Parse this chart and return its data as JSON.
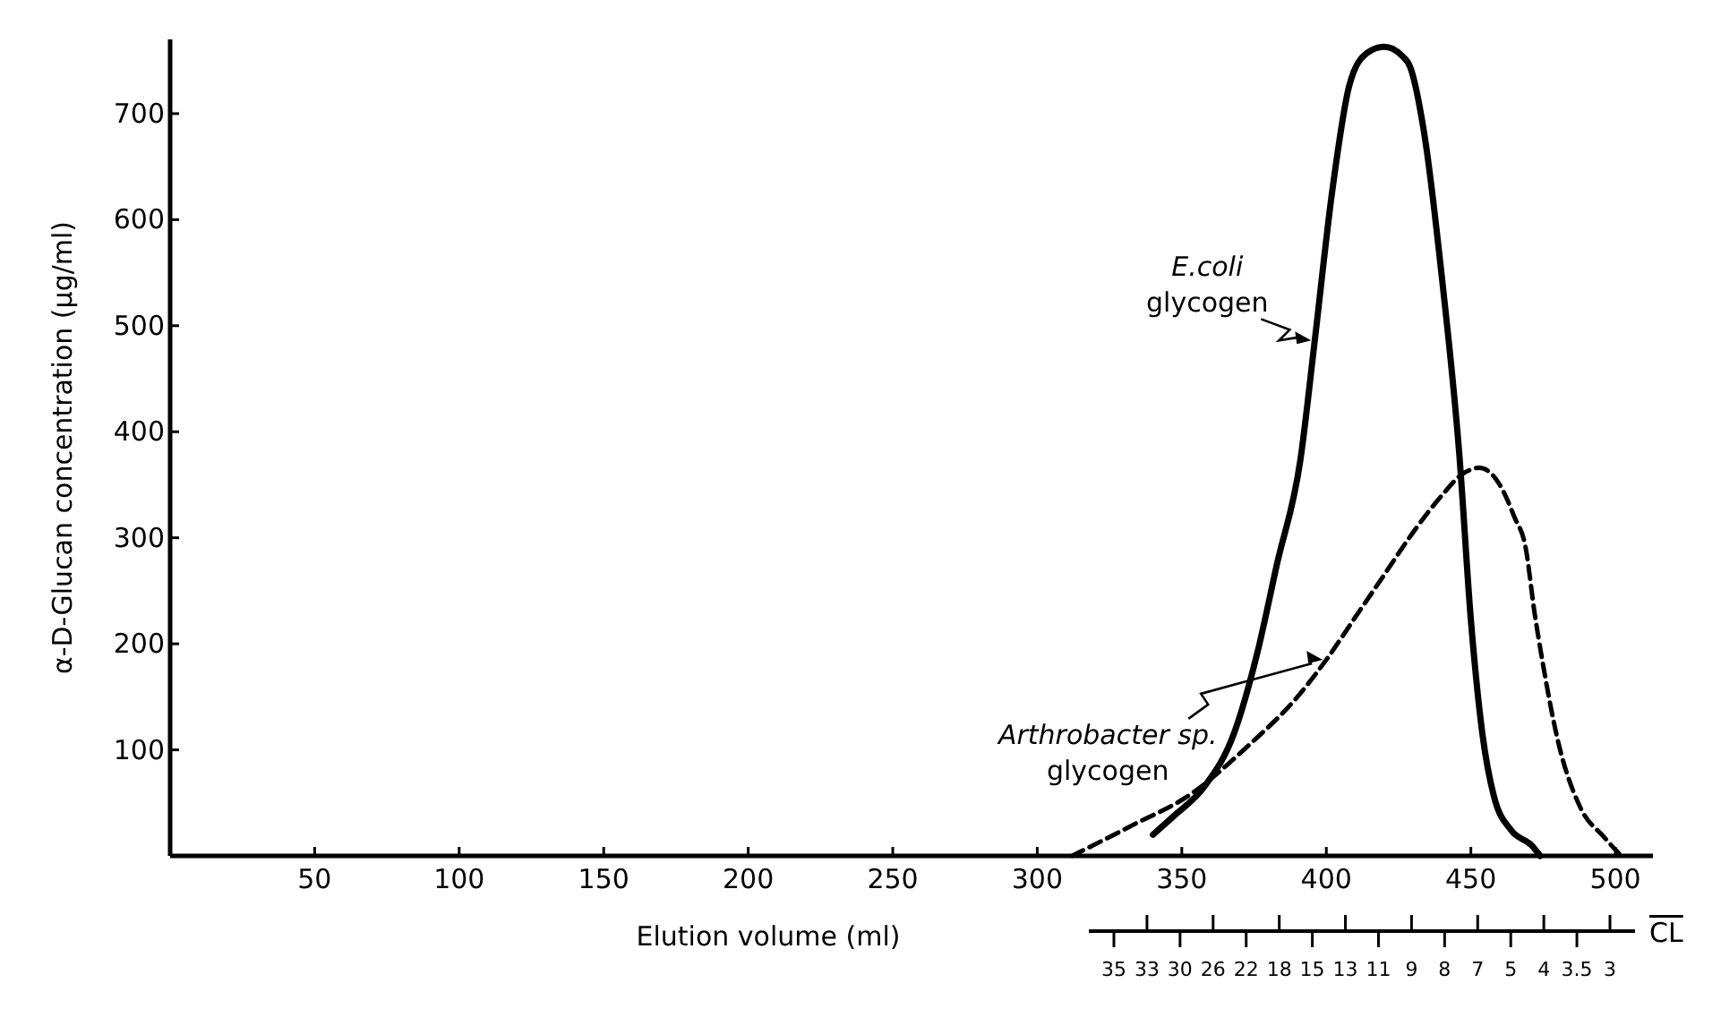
{
  "chart_data": [
    {
      "type": "line",
      "xlabel": "Elution volume (ml)",
      "ylabel": "α-D-Glucan concentration (µg/ml)",
      "xlim": [
        0,
        513
      ],
      "xticks": [
        50,
        100,
        150,
        200,
        250,
        300,
        350,
        400,
        450,
        500
      ],
      "ylim": [
        0,
        770
      ],
      "yticks": [
        100,
        200,
        300,
        400,
        500,
        600,
        700
      ],
      "grid": false,
      "legend": false,
      "series": [
        {
          "name": "E.coli glycogen",
          "color": "#000000",
          "line_style": "solid",
          "x": [
            340,
            347,
            358,
            368,
            376,
            383,
            391,
            396,
            402,
            408,
            414,
            420,
            426,
            429,
            434,
            440,
            446,
            450,
            454,
            458,
            464,
            471,
            474
          ],
          "values": [
            20,
            37,
            66,
            115,
            190,
            276,
            373,
            486,
            626,
            727,
            757,
            763,
            755,
            744,
            679,
            545,
            379,
            223,
            115,
            56,
            24,
            10,
            0
          ]
        },
        {
          "name": "Arthrobacter sp. glycogen",
          "color": "#000000",
          "line_style": "dashed",
          "x": [
            312,
            333,
            353,
            373,
            390,
            400,
            410,
            420,
            430,
            440,
            447,
            453,
            460,
            465,
            469,
            472,
            475,
            480,
            488,
            496,
            502
          ],
          "values": [
            0,
            29,
            58,
            104,
            150,
            185,
            225,
            265,
            305,
            340,
            360,
            366,
            350,
            320,
            290,
            230,
            180,
            110,
            45,
            18,
            0
          ]
        }
      ]
    },
    {
      "type": "other",
      "xlabel": "CL",
      "categories": [
        "35",
        "33",
        "30",
        "26",
        "22",
        "18",
        "15",
        "13",
        "11",
        "9",
        "8",
        "7",
        "5",
        "4",
        "3.5",
        "3"
      ]
    }
  ]
}
